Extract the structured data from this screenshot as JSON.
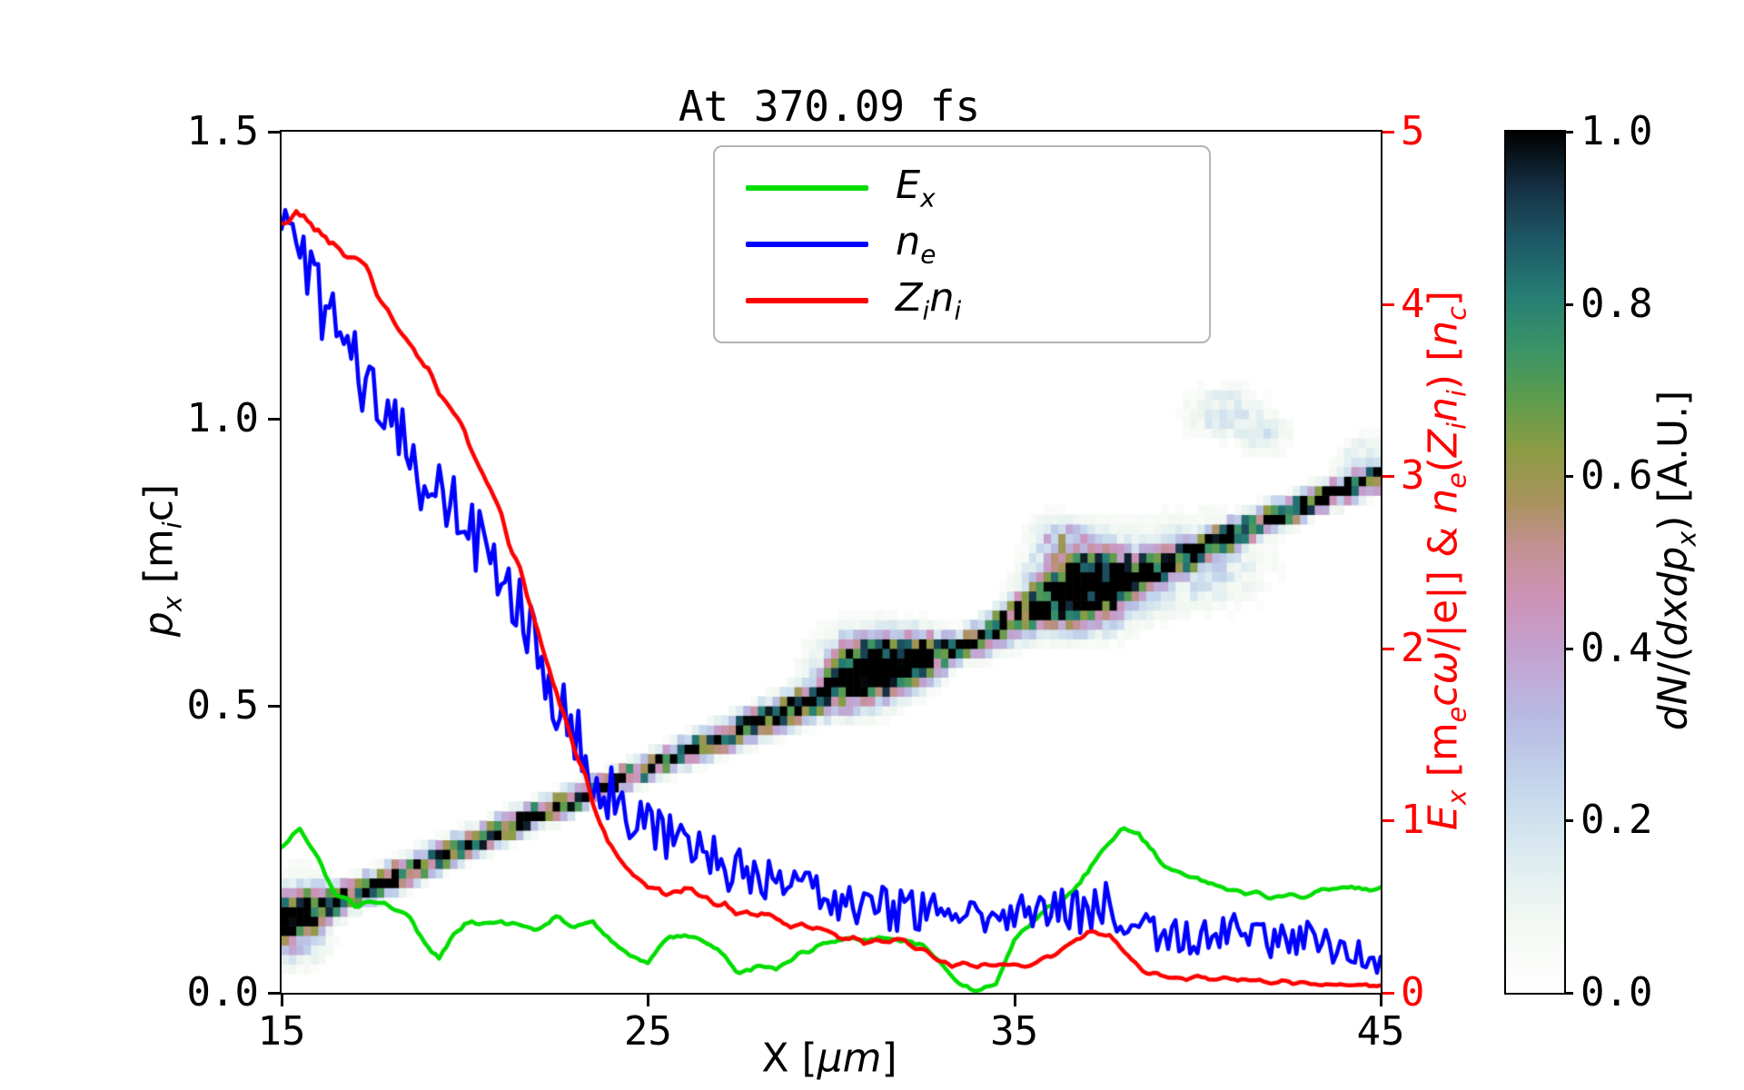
{
  "figure": {
    "title": "At 370.09 fs",
    "background": "#ffffff"
  },
  "axes": {
    "x": {
      "range": [
        15,
        45
      ],
      "ticks": [
        {
          "v": 15,
          "label": "15"
        },
        {
          "v": 25,
          "label": "25"
        },
        {
          "v": 35,
          "label": "35"
        },
        {
          "v": 45,
          "label": "45"
        }
      ],
      "label_segments": [
        {
          "t": "X ["
        },
        {
          "i": "μm"
        },
        {
          "t": "]"
        }
      ]
    },
    "y_left": {
      "range": [
        0,
        1.5
      ],
      "ticks": [
        {
          "v": 0,
          "label": "0.0"
        },
        {
          "v": 0.5,
          "label": "0.5"
        },
        {
          "v": 1,
          "label": "1.0"
        },
        {
          "v": 1.5,
          "label": "1.5"
        }
      ],
      "label_segments": [
        {
          "i": "p"
        },
        {
          "isub": "x"
        },
        {
          "t": " [m"
        },
        {
          "isub": "i"
        },
        {
          "t": "c]"
        }
      ]
    },
    "y_right": {
      "range": [
        0,
        5
      ],
      "color": "#ff0000",
      "ticks": [
        {
          "v": 0,
          "label": "0"
        },
        {
          "v": 1,
          "label": "1"
        },
        {
          "v": 2,
          "label": "2"
        },
        {
          "v": 3,
          "label": "3"
        },
        {
          "v": 4,
          "label": "4"
        },
        {
          "v": 5,
          "label": "5"
        }
      ],
      "label_segments": [
        {
          "i": "E"
        },
        {
          "isub": "x"
        },
        {
          "t": " [m"
        },
        {
          "isub": "e"
        },
        {
          "i": "cω"
        },
        {
          "t": "/|e|] & "
        },
        {
          "i": "n"
        },
        {
          "isub": "e"
        },
        {
          "t": "("
        },
        {
          "i": "Z"
        },
        {
          "isub": "i"
        },
        {
          "i": "n"
        },
        {
          "isub": "i"
        },
        {
          "t": ") ["
        },
        {
          "i": "n"
        },
        {
          "isub": "c"
        },
        {
          "t": "]"
        }
      ]
    }
  },
  "legend": {
    "entries": [
      {
        "key": "Ex",
        "color": "#00dd00",
        "segments": [
          {
            "i": "E"
          },
          {
            "isub": "x"
          }
        ]
      },
      {
        "key": "ne",
        "color": "#0000ff",
        "segments": [
          {
            "i": "n"
          },
          {
            "isub": "e"
          }
        ]
      },
      {
        "key": "Zini",
        "color": "#ff0000",
        "segments": [
          {
            "i": "Z"
          },
          {
            "isub": "i"
          },
          {
            "i": "n"
          },
          {
            "isub": "i"
          }
        ]
      }
    ]
  },
  "colorbar": {
    "ticks": [
      {
        "v": 0,
        "label": "0.0"
      },
      {
        "v": 0.2,
        "label": "0.2"
      },
      {
        "v": 0.4,
        "label": "0.4"
      },
      {
        "v": 0.6,
        "label": "0.6"
      },
      {
        "v": 0.8,
        "label": "0.8"
      },
      {
        "v": 1,
        "label": "1.0"
      }
    ],
    "label_segments": [
      {
        "i": "dN"
      },
      {
        "t": "/("
      },
      {
        "i": "dxdp"
      },
      {
        "isub": "x"
      },
      {
        "t": ") [A.U.]"
      }
    ]
  },
  "chart_data": [
    {
      "type": "heatmap",
      "name": "ion-phase-space",
      "xlabel": "X [μm]",
      "ylabel": "p_x [m_i c]",
      "xlim": [
        15,
        45
      ],
      "ylim": [
        0,
        1.5
      ],
      "value_label": "dN/(dxdp_x) [A.U.]",
      "value_range": [
        0,
        1
      ],
      "band_center": [
        [
          15,
          0.12
        ],
        [
          18,
          0.2
        ],
        [
          21,
          0.285
        ],
        [
          24,
          0.365
        ],
        [
          27,
          0.445
        ],
        [
          30,
          0.525
        ],
        [
          31,
          0.555
        ],
        [
          32,
          0.575
        ],
        [
          33,
          0.59
        ],
        [
          34,
          0.615
        ],
        [
          35,
          0.65
        ],
        [
          36,
          0.685
        ],
        [
          37,
          0.71
        ],
        [
          38,
          0.725
        ],
        [
          39,
          0.745
        ],
        [
          40,
          0.77
        ],
        [
          41,
          0.8
        ],
        [
          42,
          0.828
        ],
        [
          43,
          0.853
        ],
        [
          44,
          0.877
        ],
        [
          45,
          0.9
        ]
      ],
      "band_sigma": [
        [
          15,
          0.028
        ],
        [
          16.5,
          0.016
        ],
        [
          25,
          0.013
        ],
        [
          29.5,
          0.02
        ],
        [
          31,
          0.034
        ],
        [
          32.5,
          0.028
        ],
        [
          33.5,
          0.015
        ],
        [
          35.5,
          0.026
        ],
        [
          37,
          0.036
        ],
        [
          38.5,
          0.02
        ],
        [
          40,
          0.015
        ],
        [
          45,
          0.014
        ]
      ],
      "blobs": [
        {
          "x": 31,
          "p": 0.575,
          "sx": 0.8,
          "sp": 0.035,
          "amp": 0.75
        },
        {
          "x": 37,
          "p": 0.71,
          "sx": 0.9,
          "sp": 0.045,
          "amp": 0.8
        },
        {
          "x": 36.3,
          "p": 0.79,
          "sx": 0.5,
          "sp": 0.025,
          "amp": 0.3
        },
        {
          "x": 39.9,
          "p": 0.75,
          "sx": 1.2,
          "sp": 0.05,
          "amp": 0.25
        },
        {
          "x": 40.8,
          "p": 1.01,
          "sx": 0.7,
          "sp": 0.03,
          "amp": 0.2
        },
        {
          "x": 41.9,
          "p": 0.97,
          "sx": 0.45,
          "sp": 0.02,
          "amp": 0.16
        },
        {
          "x": 44.6,
          "p": 0.93,
          "sx": 0.5,
          "sp": 0.025,
          "amp": 0.18
        },
        {
          "x": 15.5,
          "p": 0.13,
          "sx": 0.5,
          "sp": 0.045,
          "amp": 0.45
        }
      ],
      "grid": {
        "nx": 150,
        "np": 90
      },
      "colormap": [
        [
          0,
          "#ffffff"
        ],
        [
          0.08,
          "#f3f8f2"
        ],
        [
          0.16,
          "#dcebf0"
        ],
        [
          0.24,
          "#c4d6ec"
        ],
        [
          0.32,
          "#b8bae2"
        ],
        [
          0.4,
          "#c4a0ce"
        ],
        [
          0.46,
          "#cd92b6"
        ],
        [
          0.52,
          "#c29190"
        ],
        [
          0.57,
          "#a8925d"
        ],
        [
          0.63,
          "#8c9c44"
        ],
        [
          0.69,
          "#5c9c4e"
        ],
        [
          0.75,
          "#399367"
        ],
        [
          0.81,
          "#267d74"
        ],
        [
          0.87,
          "#1e5a67"
        ],
        [
          0.93,
          "#163449"
        ],
        [
          1,
          "#000000"
        ]
      ]
    },
    {
      "type": "line",
      "name": "lineouts",
      "y_axis": "right",
      "xlim": [
        15,
        45
      ],
      "ylim": [
        0,
        5
      ],
      "series": [
        {
          "name": "E_x",
          "color": "#00dd00",
          "width": 4.5,
          "seed": 2,
          "smooth": true,
          "noise": [
            [
              15,
              0.03
            ],
            [
              45,
              0.02
            ]
          ],
          "points": [
            [
              15,
              0.85
            ],
            [
              15.5,
              0.95
            ],
            [
              16,
              0.78
            ],
            [
              16.5,
              0.56
            ],
            [
              17,
              0.5
            ],
            [
              17.5,
              0.55
            ],
            [
              18,
              0.5
            ],
            [
              18.5,
              0.44
            ],
            [
              19,
              0.28
            ],
            [
              19.3,
              0.2
            ],
            [
              19.7,
              0.34
            ],
            [
              20,
              0.4
            ],
            [
              21,
              0.42
            ],
            [
              22,
              0.38
            ],
            [
              22.5,
              0.43
            ],
            [
              23,
              0.36
            ],
            [
              23.5,
              0.42
            ],
            [
              24,
              0.3
            ],
            [
              24.5,
              0.2
            ],
            [
              25,
              0.18
            ],
            [
              25.5,
              0.3
            ],
            [
              26,
              0.34
            ],
            [
              26.5,
              0.3
            ],
            [
              27,
              0.24
            ],
            [
              27.5,
              0.12
            ],
            [
              28,
              0.16
            ],
            [
              28.5,
              0.13
            ],
            [
              29,
              0.2
            ],
            [
              29.5,
              0.26
            ],
            [
              30,
              0.3
            ],
            [
              30.5,
              0.32
            ],
            [
              31,
              0.3
            ],
            [
              31.5,
              0.32
            ],
            [
              32,
              0.3
            ],
            [
              32.5,
              0.28
            ],
            [
              33,
              0.16
            ],
            [
              33.5,
              0.05
            ],
            [
              34,
              0.0
            ],
            [
              34.5,
              0.06
            ],
            [
              35,
              0.3
            ],
            [
              35.5,
              0.42
            ],
            [
              36,
              0.5
            ],
            [
              36.5,
              0.56
            ],
            [
              37,
              0.7
            ],
            [
              37.5,
              0.85
            ],
            [
              38,
              0.95
            ],
            [
              38.4,
              0.92
            ],
            [
              39,
              0.76
            ],
            [
              39.5,
              0.7
            ],
            [
              40,
              0.66
            ],
            [
              40.5,
              0.62
            ],
            [
              41,
              0.6
            ],
            [
              42,
              0.55
            ],
            [
              43,
              0.57
            ],
            [
              43.5,
              0.6
            ],
            [
              44,
              0.62
            ],
            [
              44.5,
              0.6
            ],
            [
              45,
              0.6
            ]
          ]
        },
        {
          "name": "n_e",
          "color": "#0000ff",
          "width": 4.5,
          "seed": 1,
          "smooth": false,
          "noise": [
            [
              15,
              0.25
            ],
            [
              20,
              0.22
            ],
            [
              25,
              0.16
            ],
            [
              30,
              0.13
            ],
            [
              35,
              0.13
            ],
            [
              40,
              0.11
            ],
            [
              45,
              0.1
            ]
          ],
          "points": [
            [
              15,
              4.4
            ],
            [
              15.5,
              4.45
            ],
            [
              16,
              4.0
            ],
            [
              16.5,
              3.8
            ],
            [
              17,
              3.65
            ],
            [
              17.5,
              3.5
            ],
            [
              18,
              3.3
            ],
            [
              18.5,
              3.1
            ],
            [
              19,
              2.95
            ],
            [
              19.5,
              2.85
            ],
            [
              20,
              2.75
            ],
            [
              20.5,
              2.6
            ],
            [
              21,
              2.4
            ],
            [
              21.5,
              2.2
            ],
            [
              22,
              1.95
            ],
            [
              22.5,
              1.7
            ],
            [
              23,
              1.5
            ],
            [
              23.5,
              1.3
            ],
            [
              24,
              1.15
            ],
            [
              24.5,
              1.05
            ],
            [
              25,
              0.95
            ],
            [
              25.5,
              0.9
            ],
            [
              26,
              0.85
            ],
            [
              27,
              0.75
            ],
            [
              28,
              0.68
            ],
            [
              29,
              0.6
            ],
            [
              30,
              0.55
            ],
            [
              31,
              0.5
            ],
            [
              32,
              0.47
            ],
            [
              33,
              0.5
            ],
            [
              34,
              0.42
            ],
            [
              35,
              0.45
            ],
            [
              36,
              0.5
            ],
            [
              37,
              0.45
            ],
            [
              37.5,
              0.52
            ],
            [
              38,
              0.4
            ],
            [
              39,
              0.35
            ],
            [
              40,
              0.3
            ],
            [
              41,
              0.35
            ],
            [
              42,
              0.3
            ],
            [
              43,
              0.33
            ],
            [
              44,
              0.25
            ],
            [
              45,
              0.2
            ]
          ]
        },
        {
          "name": "Z_i n_i",
          "color": "#ff0000",
          "width": 4.5,
          "seed": 3,
          "smooth": true,
          "noise": [
            [
              15,
              0.06
            ],
            [
              22,
              0.05
            ],
            [
              30,
              0.03
            ],
            [
              45,
              0.02
            ]
          ],
          "points": [
            [
              15,
              4.45
            ],
            [
              15.4,
              4.55
            ],
            [
              16,
              4.42
            ],
            [
              16.5,
              4.35
            ],
            [
              17,
              4.28
            ],
            [
              17.5,
              4.1
            ],
            [
              18,
              3.92
            ],
            [
              18.5,
              3.75
            ],
            [
              19,
              3.6
            ],
            [
              19.5,
              3.45
            ],
            [
              20,
              3.28
            ],
            [
              20.5,
              3.0
            ],
            [
              21,
              2.75
            ],
            [
              21.5,
              2.45
            ],
            [
              22,
              2.1
            ],
            [
              22.5,
              1.75
            ],
            [
              23,
              1.42
            ],
            [
              23.5,
              1.1
            ],
            [
              24,
              0.85
            ],
            [
              24.5,
              0.7
            ],
            [
              25,
              0.6
            ],
            [
              25.5,
              0.57
            ],
            [
              26,
              0.6
            ],
            [
              26.5,
              0.57
            ],
            [
              27,
              0.5
            ],
            [
              28,
              0.45
            ],
            [
              29,
              0.4
            ],
            [
              30,
              0.35
            ],
            [
              31,
              0.3
            ],
            [
              32,
              0.3
            ],
            [
              32.5,
              0.26
            ],
            [
              33,
              0.18
            ],
            [
              34,
              0.15
            ],
            [
              35,
              0.15
            ],
            [
              36,
              0.2
            ],
            [
              36.5,
              0.28
            ],
            [
              37,
              0.35
            ],
            [
              37.3,
              0.32
            ],
            [
              37.6,
              0.35
            ],
            [
              38,
              0.25
            ],
            [
              38.5,
              0.13
            ],
            [
              39,
              0.1
            ],
            [
              40,
              0.08
            ],
            [
              41,
              0.07
            ],
            [
              42,
              0.06
            ],
            [
              43,
              0.06
            ],
            [
              44,
              0.05
            ],
            [
              45,
              0.04
            ]
          ]
        }
      ]
    }
  ]
}
